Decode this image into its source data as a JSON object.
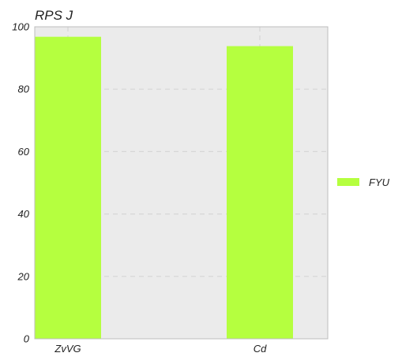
{
  "chart_data": {
    "type": "bar",
    "title": "RPS J",
    "xlabel": "",
    "ylabel": "",
    "categories": [
      "ZvVG",
      "Cd"
    ],
    "series": [
      {
        "name": "FYU",
        "values": [
          96.8,
          93.8
        ]
      }
    ],
    "ylim": [
      0,
      100
    ],
    "yticks": [
      0,
      20,
      40,
      60,
      80,
      100
    ],
    "grid": true,
    "legend_position": "right",
    "colors": {
      "bar": "#b5ff3f",
      "plot_background": "#ebebeb",
      "grid": "#d6d6d6",
      "frame": "#bdbdbd"
    }
  }
}
